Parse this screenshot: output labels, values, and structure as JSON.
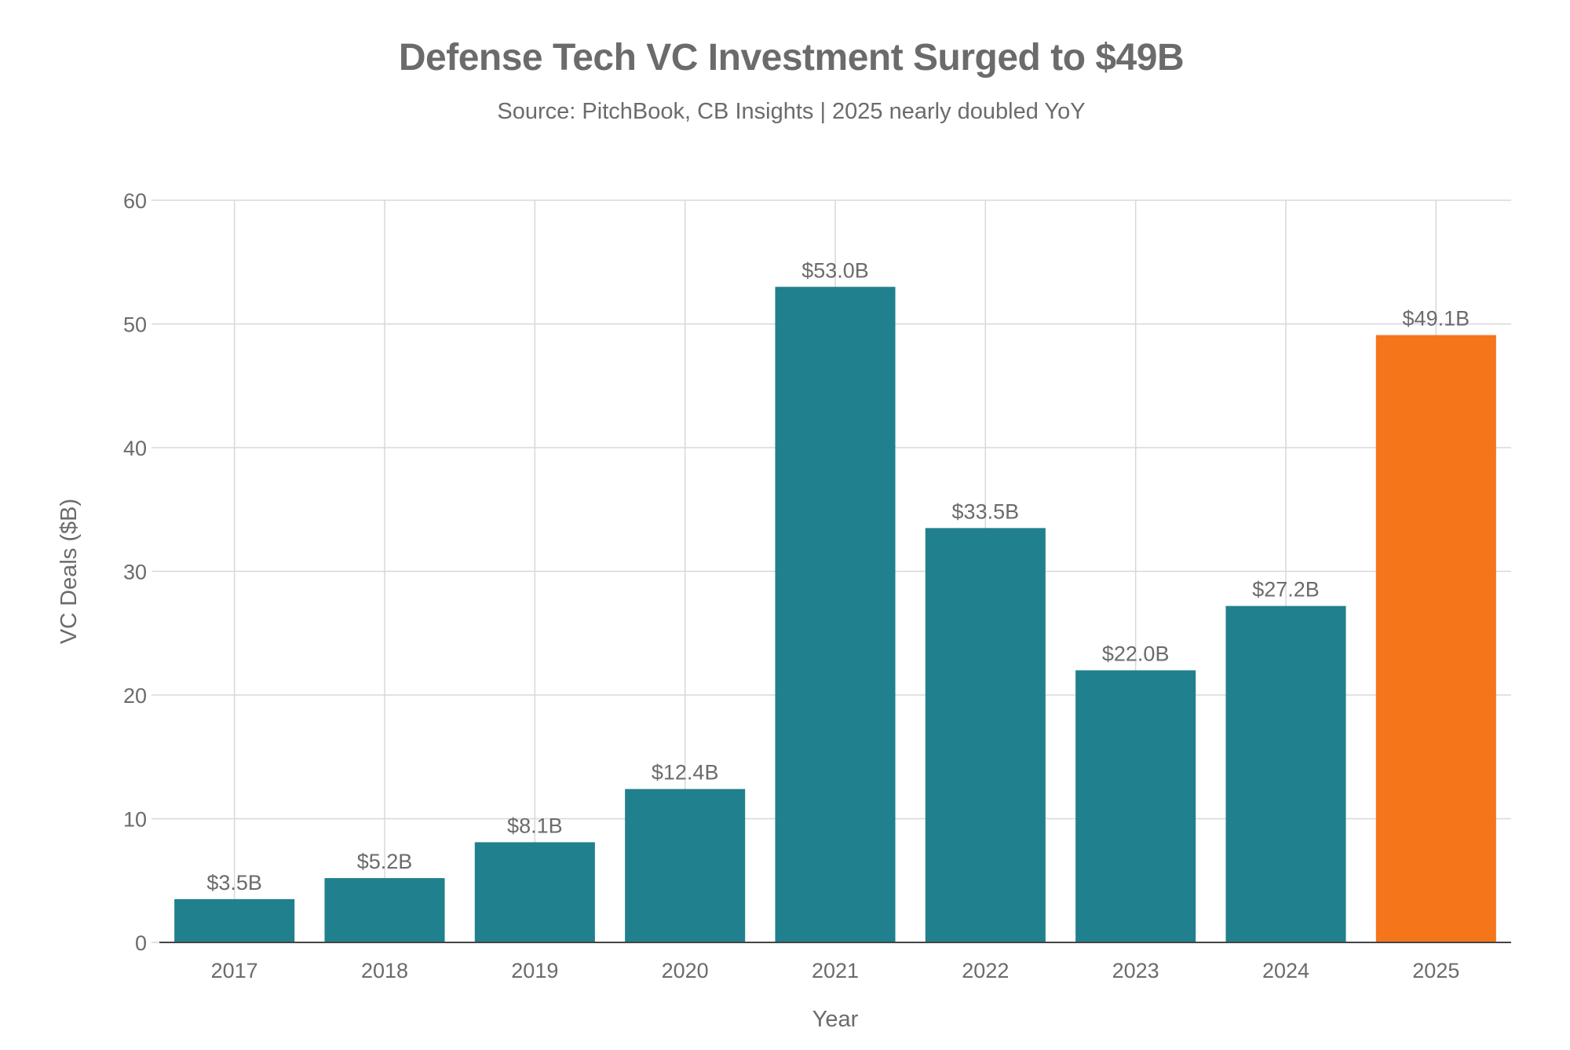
{
  "chart_data": {
    "type": "bar",
    "title": "Defense Tech VC Investment Surged to $49B",
    "subtitle": "Source: PitchBook, CB Insights | 2025 nearly doubled YoY",
    "xlabel": "Year",
    "ylabel": "VC Deals ($B)",
    "ylim": [
      0,
      60
    ],
    "yticks": [
      0,
      10,
      20,
      30,
      40,
      50,
      60
    ],
    "grid": true,
    "categories": [
      "2017",
      "2018",
      "2019",
      "2020",
      "2021",
      "2022",
      "2023",
      "2024",
      "2025"
    ],
    "values": [
      3.5,
      5.2,
      8.1,
      12.4,
      53.0,
      33.5,
      22.0,
      27.2,
      49.1
    ],
    "data_labels": [
      "$3.5B",
      "$5.2B",
      "$8.1B",
      "$12.4B",
      "$53.0B",
      "$33.5B",
      "$22.0B",
      "$27.2B",
      "$49.1B"
    ],
    "colors": {
      "default_bar": "#21808d",
      "highlight_bar": "#f5751b",
      "grid": "#d8d8d8",
      "axis_line": "#444444",
      "text": "#6b6b6b"
    },
    "highlight_category": "2025"
  }
}
